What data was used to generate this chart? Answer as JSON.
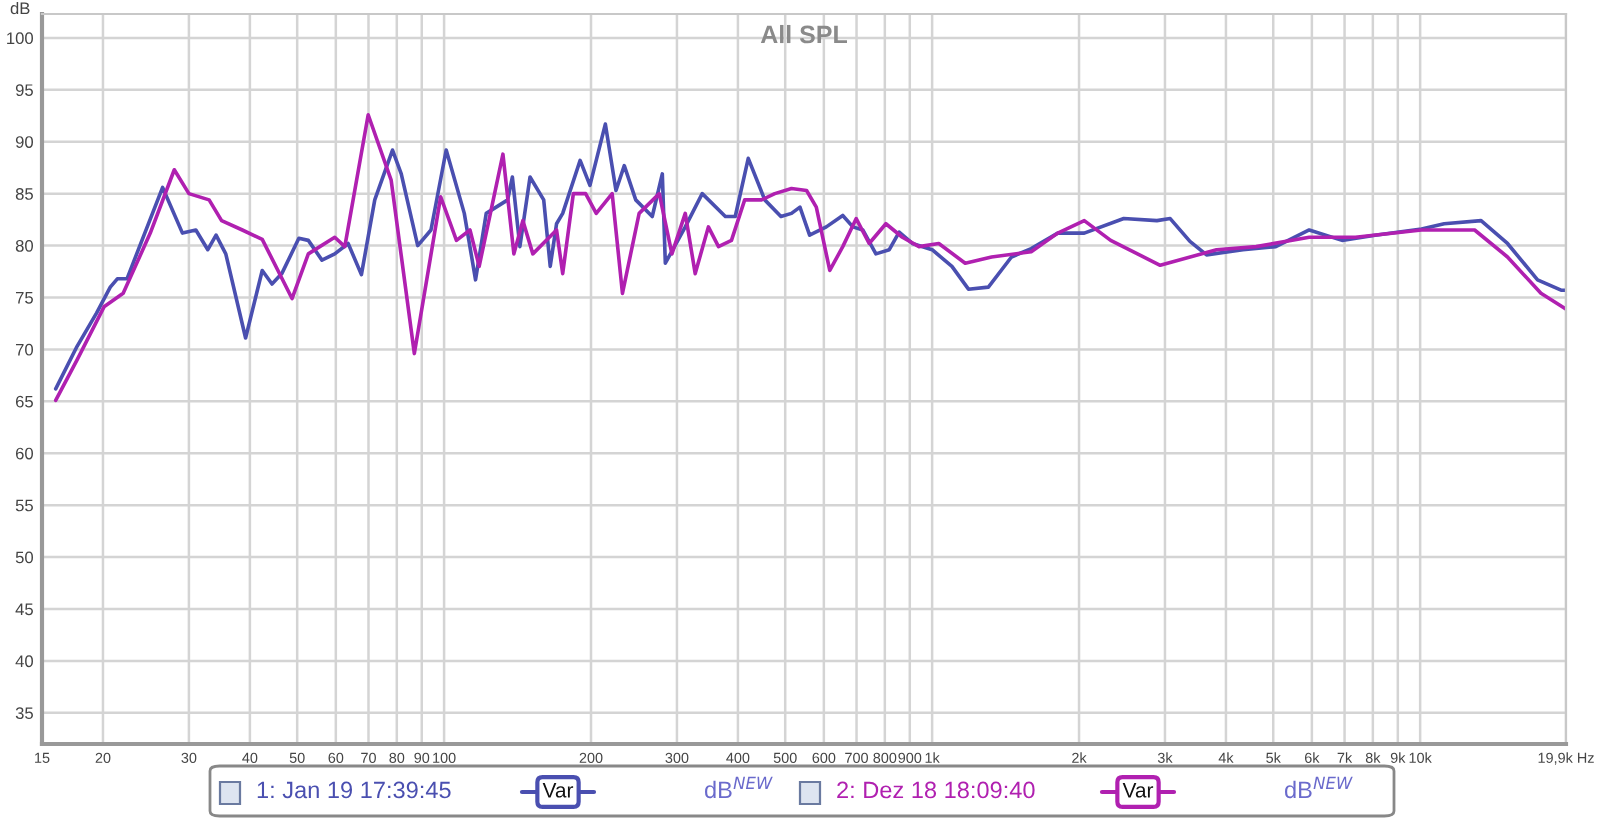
{
  "chart_data": {
    "type": "line",
    "title": "All SPL",
    "ylabel": "dB",
    "x": [
      16.0,
      17.7,
      20.1,
      22,
      25,
      28,
      30,
      33,
      35,
      38.6,
      42.4,
      48.8,
      52.7,
      59.7,
      62.6,
      69.9,
      77.9,
      86.9,
      98.4,
      106,
      113,
      118,
      132,
      139,
      145,
      152,
      170,
      175,
      184,
      195,
      205,
      221,
      232,
      251,
      276,
      293,
      312,
      327,
      348,
      365,
      388,
      413,
      447,
      476,
      515,
      553,
      579,
      617,
      656,
      699,
      743,
      804,
      869,
      940,
      1032,
      1169,
      1324,
      1596,
      1809,
      2050,
      2322,
      2933,
      3826,
      4612,
      5925,
      7367,
      10063,
      12930,
      15100,
      17680,
      19880
    ],
    "series": [
      {
        "name": "1: Jan 19 17:39:45",
        "color": "#4a4fb0",
        "x": [
          16.0,
          17.7,
          19.4,
          20.7,
          21.4,
          22.4,
          26.5,
          29.1,
          31.0,
          32.8,
          34.1,
          35.7,
          39.2,
          42.4,
          44.4,
          46.5,
          50.4,
          52.7,
          56.2,
          59.7,
          63.6,
          67.7,
          72.1,
          78.4,
          81.7,
          88.3,
          94.0,
          101,
          110,
          116,
          122,
          135,
          138,
          143,
          150,
          160,
          165,
          170,
          175,
          190,
          199,
          214,
          225,
          234,
          247,
          267,
          280,
          284,
          312,
          338,
          377,
          395,
          420,
          454,
          490,
          515,
          536,
          561,
          607,
          656,
          688,
          721,
          767,
          817,
          856,
          911,
          1000,
          1098,
          1187,
          1304,
          1454,
          1596,
          1809,
          2050,
          2470,
          2888,
          3075,
          3375,
          3651,
          4334,
          5060,
          5925,
          6918,
          8085,
          10063,
          11200,
          13330,
          15100,
          17400,
          19440,
          19880
        ],
        "values": [
          66.2,
          70.3,
          73.5,
          76.0,
          76.8,
          76.8,
          85.6,
          81.2,
          81.5,
          79.6,
          81.0,
          79.2,
          71.1,
          77.6,
          76.3,
          77.3,
          80.7,
          80.5,
          78.6,
          79.2,
          80.2,
          77.2,
          84.4,
          89.2,
          86.9,
          80.0,
          81.5,
          89.2,
          83.1,
          76.7,
          83.1,
          84.4,
          86.6,
          79.9,
          86.6,
          84.4,
          78.0,
          82.1,
          83.1,
          88.2,
          85.8,
          91.7,
          85.3,
          87.7,
          84.4,
          82.8,
          86.9,
          78.3,
          81.8,
          85.0,
          82.8,
          82.8,
          88.4,
          84.4,
          82.8,
          83.1,
          83.7,
          81.0,
          81.8,
          82.9,
          81.8,
          81.5,
          79.2,
          79.6,
          81.3,
          80.2,
          79.6,
          78.0,
          75.8,
          76.0,
          78.9,
          79.7,
          81.2,
          81.2,
          82.6,
          82.4,
          82.6,
          80.4,
          79.1,
          79.6,
          79.9,
          81.5,
          80.5,
          81.0,
          81.6,
          82.1,
          82.4,
          80.2,
          76.7,
          75.7,
          75.7
        ]
      },
      {
        "name": "2: Dez 18 18:09:40",
        "color": "#b020b0",
        "values": [
          65.1,
          69.0,
          74.1,
          75.4,
          81.2,
          87.3,
          85.0,
          84.4,
          82.4,
          81.5,
          80.6,
          74.9,
          79.2,
          80.8,
          79.9,
          92.6,
          86.3,
          69.6,
          84.7,
          80.5,
          81.5,
          78.0,
          88.8,
          79.2,
          82.4,
          79.2,
          81.5,
          77.3,
          85.0,
          85.0,
          83.1,
          85.0,
          75.4,
          83.1,
          85.0,
          79.2,
          83.1,
          77.3,
          81.8,
          79.9,
          80.5,
          84.4,
          84.4,
          85.0,
          85.5,
          85.3,
          83.7,
          77.6,
          79.9,
          82.6,
          80.2,
          82.1,
          80.8,
          79.9,
          80.2,
          78.3,
          78.9,
          79.4,
          81.2,
          82.4,
          80.5,
          78.1,
          79.6,
          79.9,
          80.8,
          80.8,
          81.5,
          81.5,
          78.9,
          75.4,
          73.9
        ]
      }
    ],
    "log": "x",
    "xlim": [
      15,
      19900
    ],
    "xticks": [
      15,
      20,
      30,
      40,
      50,
      60,
      70,
      80,
      90,
      100,
      200,
      300,
      400,
      500,
      600,
      700,
      800,
      900,
      {
        "value": 1000,
        "label": "1k"
      },
      {
        "value": 2000,
        "label": "2k"
      },
      {
        "value": 3000,
        "label": "3k"
      },
      {
        "value": 4000,
        "label": "4k"
      },
      {
        "value": 5000,
        "label": "5k"
      },
      {
        "value": 6000,
        "label": "6k"
      },
      {
        "value": 7000,
        "label": "7k"
      },
      {
        "value": 8000,
        "label": "8k"
      },
      {
        "value": 9000,
        "label": "9k"
      },
      {
        "value": 10000,
        "label": "10k"
      },
      {
        "value": 19900,
        "label": "19,9k Hz"
      }
    ],
    "ylim": [
      32,
      102.3
    ],
    "yticks": [
      35,
      40,
      45,
      50,
      55,
      60,
      65,
      70,
      75,
      80,
      85,
      90,
      95,
      100
    ],
    "grid": true,
    "legend": "bottom",
    "marker": "none",
    "line_style": "solid",
    "annotations": [
      "Var",
      "dB$^{NEW}$",
      "Var",
      "dB$^{NEW}$"
    ]
  }
}
